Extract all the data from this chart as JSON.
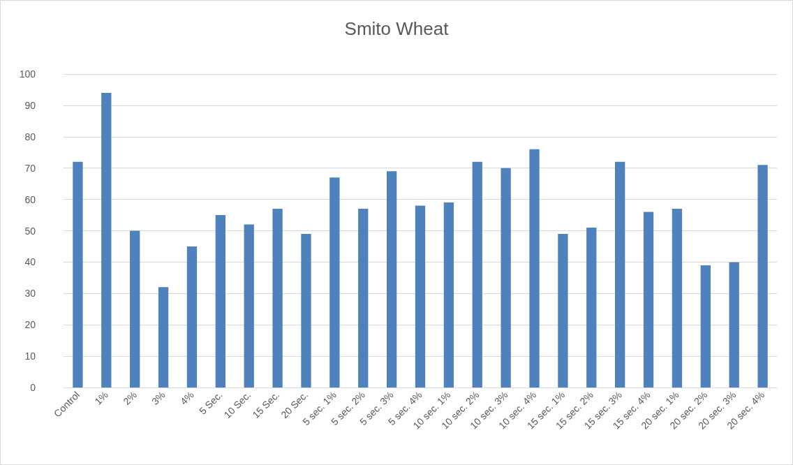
{
  "chart_data": {
    "type": "bar",
    "title": "Smito Wheat",
    "categories": [
      "Control",
      "1%",
      "2%",
      "3%",
      "4%",
      "5 Sec.",
      "10 Sec.",
      "15 Sec.",
      "20 Sec.",
      "5 sec. 1%",
      "5 sec. 2%",
      "5 sec. 3%",
      "5 sec. 4%",
      "10 sec. 1%",
      "10 sec. 2%",
      "10 sec. 3%",
      "10 sec. 4%",
      "15 sec. 1%",
      "15 sec. 2%",
      "15 sec. 3%",
      "15 sec. 4%",
      "20 sec. 1%",
      "20 sec. 2%",
      "20 sec. 3%",
      "20 sec. 4%"
    ],
    "values": [
      72,
      94,
      50,
      32,
      45,
      55,
      52,
      57,
      49,
      67,
      57,
      69,
      58,
      59,
      72,
      70,
      76,
      49,
      51,
      72,
      56,
      57,
      39,
      40,
      71
    ],
    "color": "#4f81bd",
    "ylim": [
      0,
      100
    ],
    "yticks": [
      0,
      10,
      20,
      30,
      40,
      50,
      60,
      70,
      80,
      90,
      100
    ],
    "grid": "y"
  }
}
